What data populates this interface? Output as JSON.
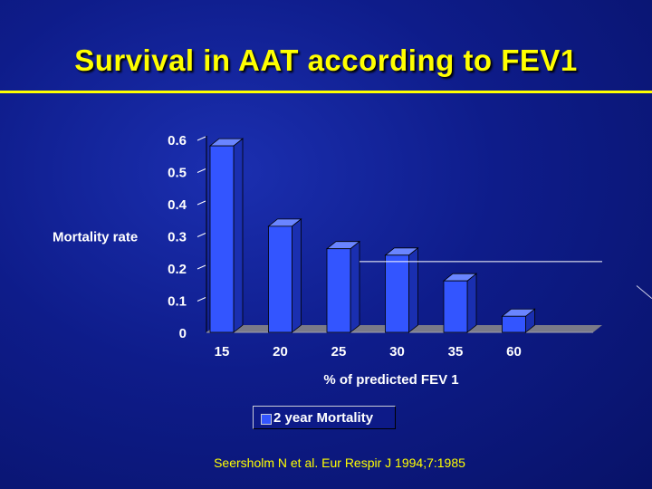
{
  "slide": {
    "title": "Survival in AAT according to FEV1",
    "citation": "Seersholm N et al. Eur Respir J 1994;7:1985"
  },
  "chart_data": {
    "type": "bar",
    "categories": [
      "15",
      "20",
      "25",
      "30",
      "35",
      "60"
    ],
    "series": [
      {
        "name": "2 year Mortality",
        "values": [
          0.58,
          0.33,
          0.26,
          0.24,
          0.16,
          0.05
        ]
      }
    ],
    "xlabel": "% of predicted FEV 1",
    "ylabel": "Mortality rate",
    "yticks": [
      "0",
      "0.1",
      "0.2",
      "0.3",
      "0.4",
      "0.5",
      "0.6"
    ],
    "ylim": [
      0,
      0.6
    ],
    "reference_line": 0.22,
    "legend": "bottom-center",
    "grid": false,
    "style": "3d",
    "bar_color": "#3355ff"
  },
  "colors": {
    "background": "#0e1c8a",
    "title": "#ffff00",
    "text": "#ffffff",
    "bar": "#3355ff"
  }
}
